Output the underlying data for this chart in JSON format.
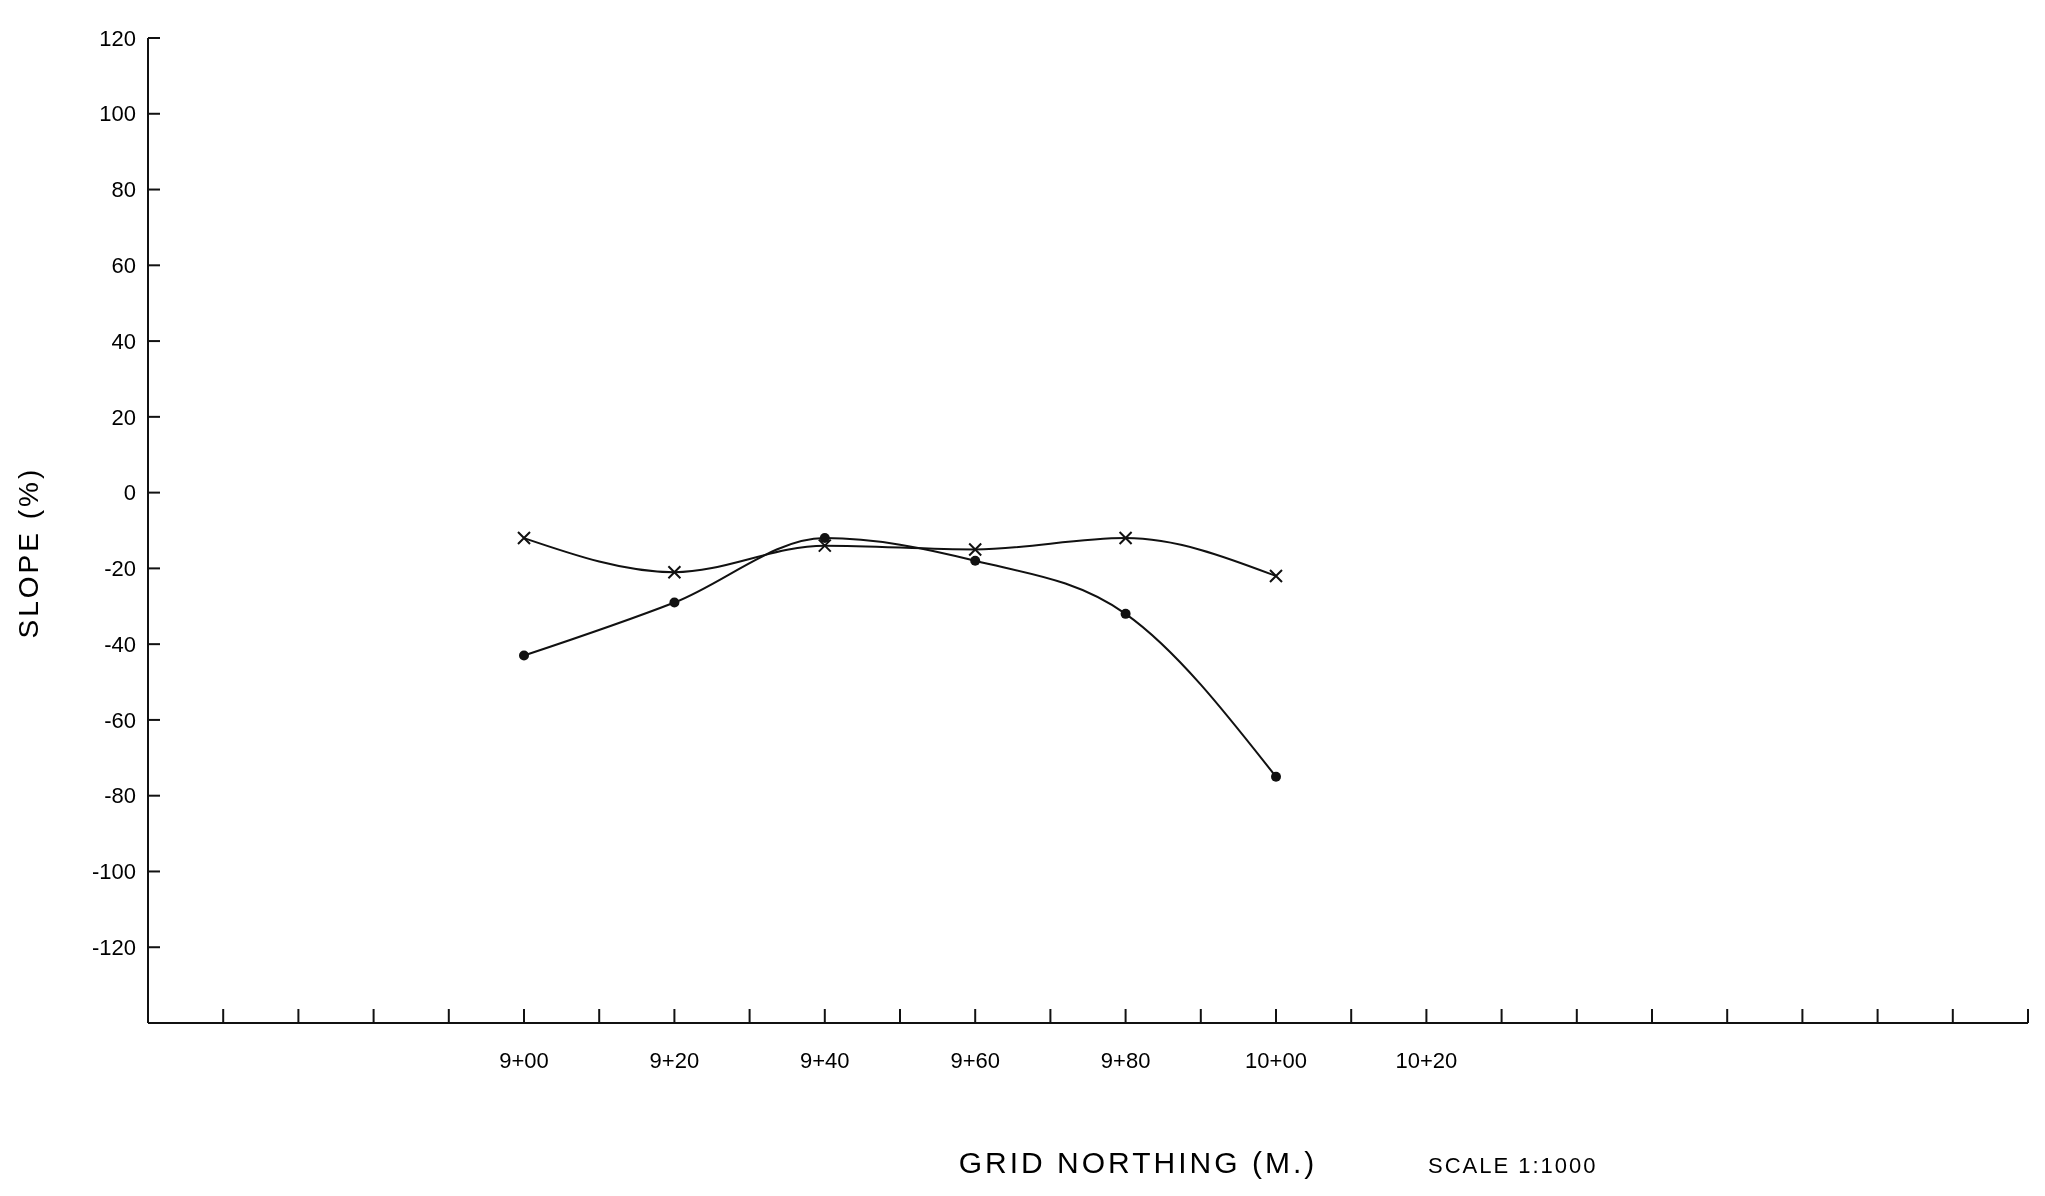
{
  "chart_data": {
    "type": "line",
    "xlabel": "GRID NORTHING (M.)",
    "ylabel": "SLOPE (%)",
    "annotations": [
      "SCALE 1:1000"
    ],
    "categories": [
      null,
      null,
      null,
      null,
      null,
      "9+00",
      null,
      "9+20",
      null,
      "9+40",
      null,
      "9+60",
      null,
      "9+80",
      null,
      "10+00",
      null,
      "10+20",
      null,
      null,
      null,
      null,
      null,
      null,
      null,
      null
    ],
    "series": [
      {
        "color": "#111111",
        "marker": "cross",
        "values": [
          null,
          null,
          null,
          null,
          null,
          -12,
          null,
          -21,
          null,
          -14,
          null,
          -15,
          null,
          -12,
          null,
          -22,
          null,
          null,
          null,
          null,
          null,
          null,
          null,
          null,
          null,
          null
        ]
      },
      {
        "color": "#111111",
        "marker": "circle",
        "values": [
          null,
          null,
          null,
          null,
          null,
          -43,
          null,
          -29,
          null,
          -12,
          null,
          -18,
          null,
          -32,
          null,
          -75,
          null,
          null,
          null,
          null,
          null,
          null,
          null,
          null,
          null,
          null
        ]
      }
    ],
    "ylim": [
      -140,
      120
    ],
    "yticks": [
      -120,
      -100,
      -80,
      -60,
      -40,
      -20,
      0,
      20,
      40,
      60,
      80,
      100,
      120
    ],
    "line_style": "solid",
    "grid": false
  }
}
